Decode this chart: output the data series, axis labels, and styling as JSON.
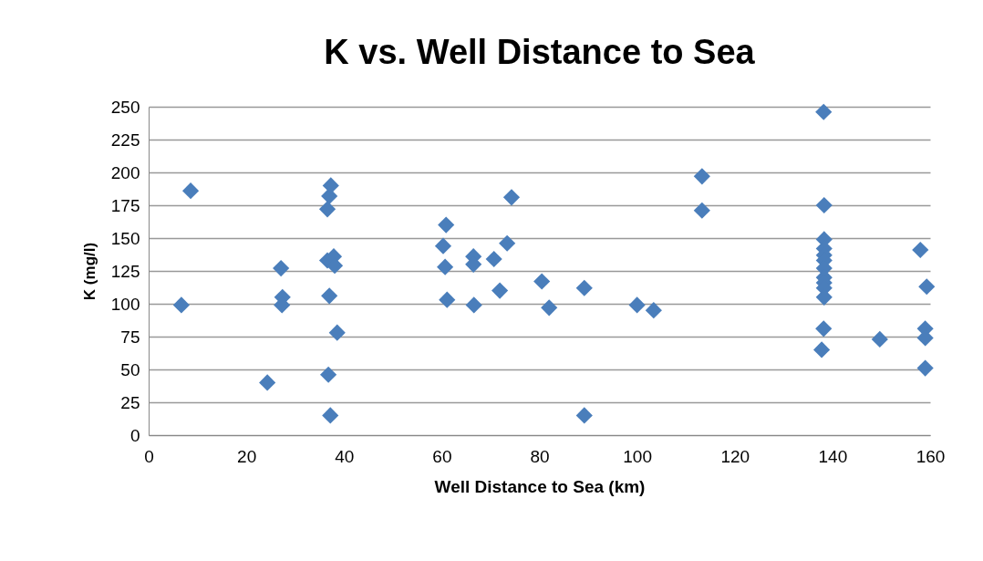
{
  "chart_data": {
    "type": "scatter",
    "title": "K vs. Well Distance to Sea",
    "xlabel": "Well Distance to Sea (km)",
    "ylabel": "K (mg/l)",
    "x": [
      6.7,
      8.6,
      24.3,
      27.1,
      27.4,
      27.3,
      36.6,
      37,
      37.3,
      36.6,
      37.9,
      38.1,
      37,
      38.6,
      36.8,
      37.2,
      60.9,
      60.3,
      60.7,
      61.1,
      66.5,
      66.5,
      66.6,
      70.7,
      71.9,
      73.4,
      74.3,
      80.5,
      82,
      89.2,
      89.2,
      100,
      103.4,
      113.3,
      113.3,
      138.2,
      138.3,
      138.3,
      138.3,
      138.3,
      138.3,
      138.3,
      138.3,
      138.3,
      138.3,
      138.3,
      138.2,
      137.8,
      149.7,
      158,
      159.3,
      159,
      159,
      159
    ],
    "series": [
      {
        "color": "#4a7ebb",
        "values": [
          99,
          186,
          40,
          127,
          105,
          99,
          172,
          182,
          190,
          133,
          136,
          129,
          106,
          78,
          46,
          15,
          160,
          144,
          128,
          103,
          136,
          130,
          99,
          134,
          110,
          146,
          181,
          117,
          97,
          112,
          15,
          99,
          95,
          197,
          171,
          246,
          175,
          149,
          142,
          137,
          133,
          127,
          120,
          116,
          112,
          105,
          81,
          65,
          73,
          141,
          113,
          81,
          74,
          51
        ]
      }
    ],
    "xlim": [
      0,
      160
    ],
    "xticks": [
      0,
      20,
      40,
      60,
      80,
      100,
      120,
      140,
      160
    ],
    "ylim": [
      0,
      250
    ],
    "yticks": [
      0,
      25,
      50,
      75,
      100,
      125,
      150,
      175,
      200,
      225,
      250
    ],
    "grid": "y",
    "marker": "diamond",
    "legend": false
  }
}
